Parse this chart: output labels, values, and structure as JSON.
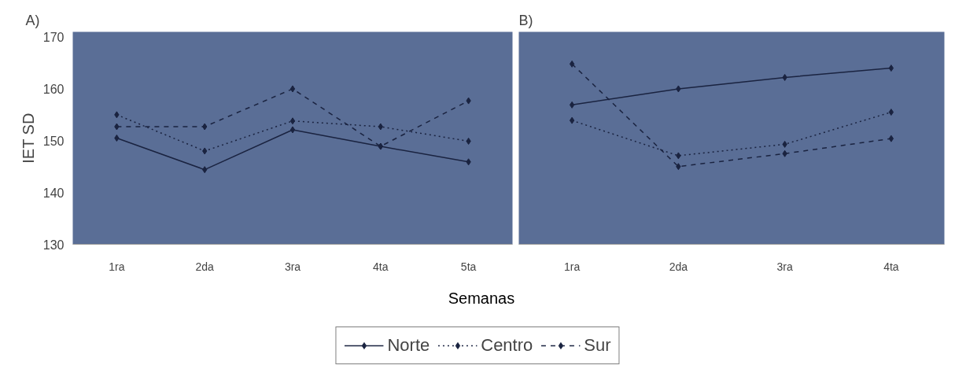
{
  "chart_data": [
    {
      "type": "line",
      "title": "A)",
      "ylabel": "IET SD",
      "categories": [
        "1ra",
        "2da",
        "3ra",
        "4ta",
        "5ta"
      ],
      "ylim": [
        130,
        171
      ],
      "yticks": [
        130,
        140,
        150,
        160,
        170
      ],
      "grid": false,
      "marker": "diamond",
      "legend": "bottom",
      "series": [
        {
          "name": "Norte",
          "color": "#1a2340",
          "line_style": "solid",
          "values": [
            150.5,
            144.4,
            152.1,
            148.9,
            145.9
          ]
        },
        {
          "name": "Centro",
          "color": "#1a2340",
          "line_style": "dotted",
          "values": [
            155.0,
            148.0,
            153.8,
            152.7,
            149.9
          ]
        },
        {
          "name": "Sur",
          "color": "#1a2340",
          "line_style": "dashed",
          "values": [
            152.7,
            152.7,
            160.0,
            148.9,
            157.7
          ]
        }
      ]
    },
    {
      "type": "line",
      "title": "B)",
      "xlabel": "Semanas",
      "categories": [
        "1ra",
        "2da",
        "3ra",
        "4ta"
      ],
      "ylim": [
        130,
        171
      ],
      "tick_labels": "x",
      "grid": false,
      "marker": "diamond",
      "series": [
        {
          "color": "#1a2340",
          "line_style": "solid",
          "values": [
            156.9,
            160.0,
            162.2,
            164.0
          ]
        },
        {
          "color": "#1a2340",
          "line_style": "dotted",
          "values": [
            153.9,
            147.1,
            149.3,
            155.5
          ]
        },
        {
          "color": "#1a2340",
          "line_style": "dashed",
          "values": [
            164.8,
            145.0,
            147.5,
            150.4
          ]
        }
      ]
    }
  ]
}
